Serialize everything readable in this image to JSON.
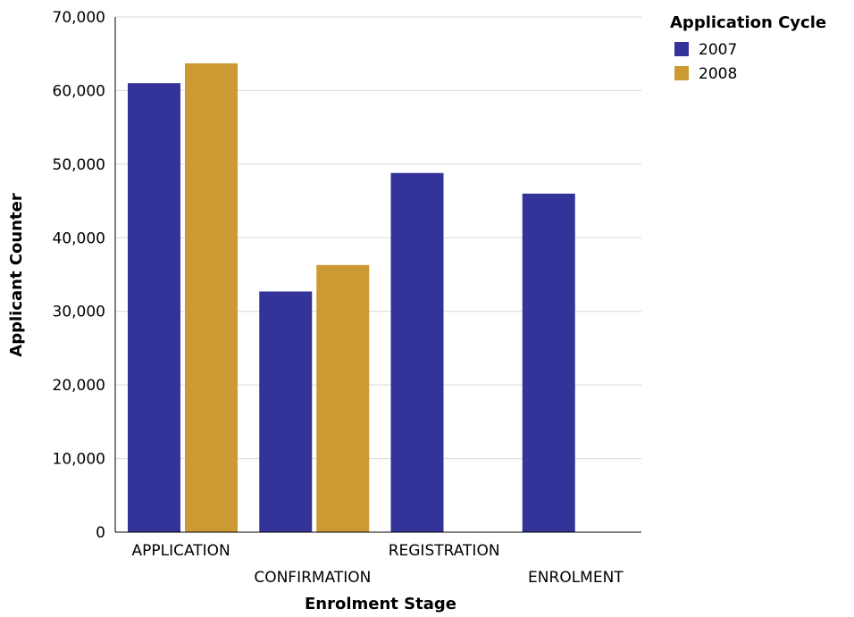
{
  "chart_data": {
    "type": "bar",
    "xlabel": "Enrolment Stage",
    "ylabel": "Applicant Counter",
    "categories": [
      "APPLICATION",
      "CONFIRMATION",
      "REGISTRATION",
      "ENROLMENT"
    ],
    "ylim": [
      0,
      70000
    ],
    "yticks": [
      0,
      10000,
      20000,
      30000,
      40000,
      50000,
      60000,
      70000
    ],
    "ytick_labels": [
      "0",
      "10,000",
      "20,000",
      "30,000",
      "40,000",
      "50,000",
      "60,000",
      "70,000"
    ],
    "grid": true,
    "legend": {
      "title": "Application Cycle",
      "placement": "top-right"
    },
    "series": [
      {
        "name": "2007",
        "color": "#333399",
        "values": [
          61000,
          32700,
          48800,
          46000
        ]
      },
      {
        "name": "2008",
        "color": "#CC9933",
        "values": [
          63700,
          36300,
          null,
          null
        ]
      }
    ]
  }
}
